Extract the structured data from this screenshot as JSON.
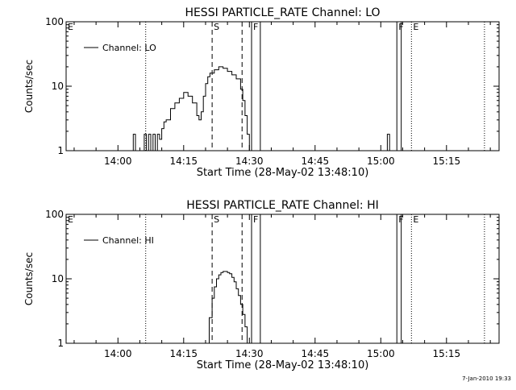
{
  "footer": {
    "timestamp": "7-Jan-2010 19:33"
  },
  "chart_data": [
    {
      "type": "line",
      "title": "HESSI PARTICLE_RATE Channel: LO",
      "xlabel": "Start Time (28-May-02 13:48:10)",
      "ylabel": "Counts/sec",
      "y_scale": "log",
      "ylim": [
        1,
        100
      ],
      "xlim": [
        "13:48:10",
        "15:27:00"
      ],
      "x_ticks": [
        "14:00",
        "14:15",
        "14:30",
        "14:45",
        "15:00",
        "15:15"
      ],
      "y_ticks": [
        "1",
        "10",
        "100"
      ],
      "grid": false,
      "legend": {
        "position": "top-left",
        "entries": [
          "Channel: LO"
        ]
      },
      "series": [
        {
          "name": "Channel: LO",
          "color": "#000000",
          "x": [
            "14:03:00",
            "14:03:30",
            "14:04:00",
            "14:06:00",
            "14:06:30",
            "14:07:00",
            "14:07:30",
            "14:08:00",
            "14:08:30",
            "14:09:00",
            "14:09:30",
            "14:10:00",
            "14:10:30",
            "14:11:00",
            "14:12:00",
            "14:13:00",
            "14:14:00",
            "14:15:00",
            "14:16:00",
            "14:17:00",
            "14:18:00",
            "14:18:30",
            "14:19:00",
            "14:19:30",
            "14:20:00",
            "14:20:30",
            "14:21:00",
            "14:22:00",
            "14:23:00",
            "14:24:00",
            "14:25:00",
            "14:26:00",
            "14:27:00",
            "14:28:00",
            "14:28:30",
            "14:29:00",
            "14:29:30",
            "14:30:00",
            "14:30:30",
            "15:01:00",
            "15:01:30",
            "15:02:00"
          ],
          "values": [
            1,
            1.8,
            1,
            1.8,
            1,
            1.8,
            1,
            1.8,
            1,
            1.8,
            1.5,
            2.2,
            2.8,
            3.0,
            4.5,
            5.5,
            6.5,
            8.0,
            7.0,
            5.5,
            3.5,
            3.0,
            4.0,
            7.0,
            11,
            14,
            16,
            18,
            20,
            19,
            17,
            15,
            13,
            9.0,
            6.0,
            3.5,
            1.8,
            1.0,
            1,
            1,
            1.8,
            1
          ]
        }
      ],
      "annotations": [
        {
          "label": "E",
          "time": "13:48:10",
          "style": "solid"
        },
        {
          "label": "",
          "time": "14:06:20",
          "style": "dotted"
        },
        {
          "label": "S",
          "time": "14:21:30",
          "style": "dashed"
        },
        {
          "label": "",
          "time": "14:28:20",
          "style": "dashed"
        },
        {
          "label": "F",
          "time": "14:30:30",
          "style": "solid"
        },
        {
          "label": "",
          "time": "14:32:30",
          "style": "solid"
        },
        {
          "label": "F",
          "time": "15:03:40",
          "style": "solid"
        },
        {
          "label": "",
          "time": "15:04:40",
          "style": "solid"
        },
        {
          "label": "E",
          "time": "15:07:00",
          "style": "dotted"
        },
        {
          "label": "",
          "time": "15:23:40",
          "style": "dotted"
        }
      ]
    },
    {
      "type": "line",
      "title": "HESSI PARTICLE_RATE Channel: HI",
      "xlabel": "Start Time (28-May-02 13:48:10)",
      "ylabel": "Counts/sec",
      "y_scale": "log",
      "ylim": [
        1,
        100
      ],
      "xlim": [
        "13:48:10",
        "15:27:00"
      ],
      "x_ticks": [
        "14:00",
        "14:15",
        "14:30",
        "14:45",
        "15:00",
        "15:15"
      ],
      "y_ticks": [
        "1",
        "10",
        "100"
      ],
      "grid": false,
      "legend": {
        "position": "top-left",
        "entries": [
          "Channel: HI"
        ]
      },
      "series": [
        {
          "name": "Channel: HI",
          "color": "#000000",
          "x": [
            "14:20:10",
            "14:20:50",
            "14:21:30",
            "14:22:00",
            "14:22:30",
            "14:23:00",
            "14:23:30",
            "14:24:00",
            "14:24:30",
            "14:25:00",
            "14:25:30",
            "14:26:00",
            "14:26:30",
            "14:27:00",
            "14:27:30",
            "14:28:00",
            "14:28:30",
            "14:29:00",
            "14:29:30"
          ],
          "values": [
            1,
            2.5,
            5.0,
            7.5,
            10,
            11.5,
            12.5,
            13,
            13,
            12.5,
            12,
            10.5,
            9.0,
            7.0,
            5.5,
            4.0,
            2.8,
            1.8,
            1
          ]
        }
      ],
      "annotations": [
        {
          "label": "E",
          "time": "13:48:10",
          "style": "solid"
        },
        {
          "label": "",
          "time": "14:06:20",
          "style": "dotted"
        },
        {
          "label": "S",
          "time": "14:21:30",
          "style": "dashed"
        },
        {
          "label": "",
          "time": "14:28:20",
          "style": "dashed"
        },
        {
          "label": "F",
          "time": "14:30:30",
          "style": "solid"
        },
        {
          "label": "",
          "time": "14:32:30",
          "style": "solid"
        },
        {
          "label": "F",
          "time": "15:03:40",
          "style": "solid"
        },
        {
          "label": "",
          "time": "15:04:40",
          "style": "solid"
        },
        {
          "label": "E",
          "time": "15:07:00",
          "style": "dotted"
        },
        {
          "label": "",
          "time": "15:23:40",
          "style": "dotted"
        }
      ]
    }
  ]
}
